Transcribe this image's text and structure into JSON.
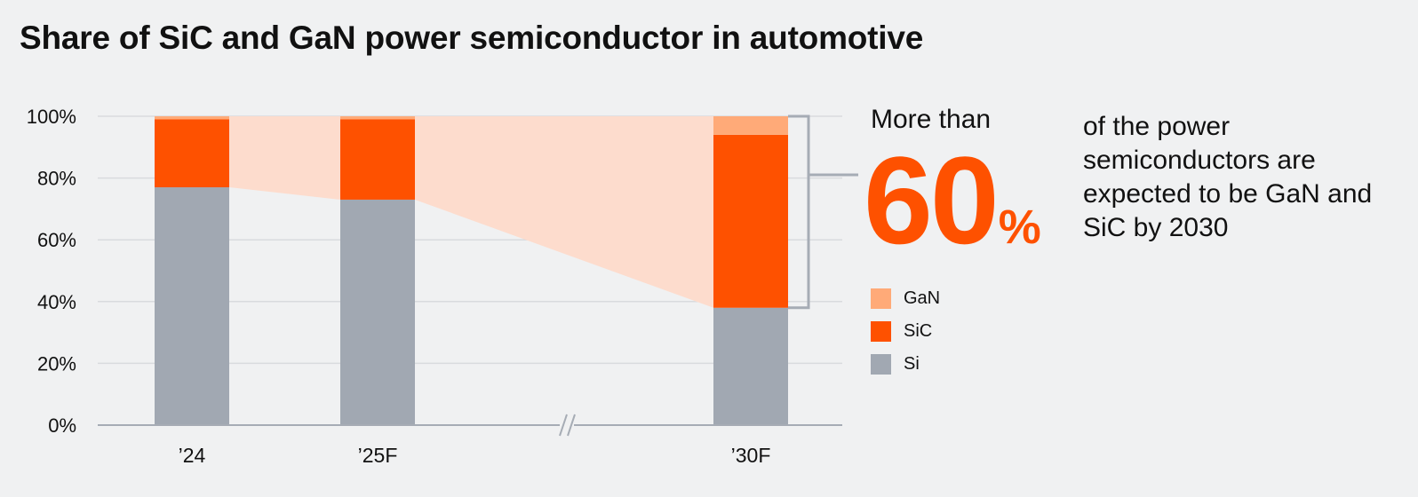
{
  "title": "Share of SiC and GaN power semiconductor in automotive",
  "colors": {
    "gan": "#ffaa78",
    "sic": "#fe5100",
    "si": "#a1a8b2",
    "band": "#fddccd",
    "accent": "#fe5100",
    "bracket": "#a6acb5"
  },
  "callout": {
    "lead": "More than",
    "number": "60",
    "unit": "%",
    "text": "of the power semiconductors are expected to be GaN and SiC by 2030"
  },
  "chart_data": {
    "type": "bar",
    "stacked": true,
    "categories": [
      "’24",
      "’25F",
      "’30F"
    ],
    "series": [
      {
        "name": "Si",
        "values": [
          77,
          73,
          38
        ]
      },
      {
        "name": "SiC",
        "values": [
          22,
          26,
          56
        ]
      },
      {
        "name": "GaN",
        "values": [
          1,
          1,
          6
        ]
      }
    ],
    "ylim": [
      0,
      100
    ],
    "yticks": [
      "0%",
      "20%",
      "40%",
      "60%",
      "80%",
      "100%"
    ],
    "axis_break": "between ’25F and ’30F",
    "grid": true,
    "legend": {
      "position": "right",
      "entries": [
        "GaN",
        "SiC",
        "Si"
      ]
    }
  }
}
